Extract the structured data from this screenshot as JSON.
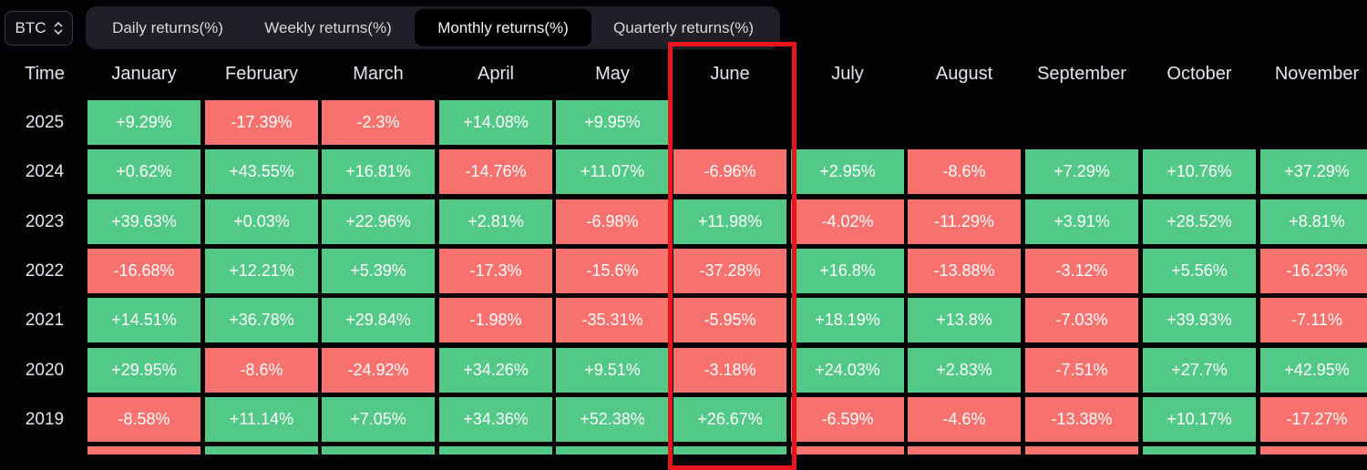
{
  "asset_selector": {
    "value": "BTC",
    "icon": "chevron-updown-icon"
  },
  "tabs": [
    {
      "label": "Daily returns(%)",
      "active": false
    },
    {
      "label": "Weekly returns(%)",
      "active": false
    },
    {
      "label": "Monthly returns(%)",
      "active": true
    },
    {
      "label": "Quarterly returns(%)",
      "active": false
    }
  ],
  "table": {
    "time_header": "Time",
    "months": [
      "January",
      "February",
      "March",
      "April",
      "May",
      "June",
      "July",
      "August",
      "September",
      "October",
      "November"
    ],
    "rows": [
      {
        "year": "2025",
        "values": [
          "+9.29%",
          "-17.39%",
          "-2.3%",
          "+14.08%",
          "+9.95%",
          "",
          "",
          "",
          "",
          "",
          ""
        ]
      },
      {
        "year": "2024",
        "values": [
          "+0.62%",
          "+43.55%",
          "+16.81%",
          "-14.76%",
          "+11.07%",
          "-6.96%",
          "+2.95%",
          "-8.6%",
          "+7.29%",
          "+10.76%",
          "+37.29%"
        ]
      },
      {
        "year": "2023",
        "values": [
          "+39.63%",
          "+0.03%",
          "+22.96%",
          "+2.81%",
          "-6.98%",
          "+11.98%",
          "-4.02%",
          "-11.29%",
          "+3.91%",
          "+28.52%",
          "+8.81%"
        ]
      },
      {
        "year": "2022",
        "values": [
          "-16.68%",
          "+12.21%",
          "+5.39%",
          "-17.3%",
          "-15.6%",
          "-37.28%",
          "+16.8%",
          "-13.88%",
          "-3.12%",
          "+5.56%",
          "-16.23%"
        ]
      },
      {
        "year": "2021",
        "values": [
          "+14.51%",
          "+36.78%",
          "+29.84%",
          "-1.98%",
          "-35.31%",
          "-5.95%",
          "+18.19%",
          "+13.8%",
          "-7.03%",
          "+39.93%",
          "-7.11%"
        ]
      },
      {
        "year": "2020",
        "values": [
          "+29.95%",
          "-8.6%",
          "-24.92%",
          "+34.26%",
          "+9.51%",
          "-3.18%",
          "+24.03%",
          "+2.83%",
          "-7.51%",
          "+27.7%",
          "+42.95%"
        ]
      },
      {
        "year": "2019",
        "values": [
          "-8.58%",
          "+11.14%",
          "+7.05%",
          "+34.36%",
          "+52.38%",
          "+26.67%",
          "-6.59%",
          "-4.6%",
          "-13.38%",
          "+10.17%",
          "-17.27%"
        ]
      }
    ],
    "partial_next_row": [
      "neg",
      "pos",
      "pos",
      "pos",
      "pos",
      "pos",
      "neg",
      "neg",
      "neg",
      "pos",
      "neg"
    ]
  },
  "colors": {
    "positive": "#53c987",
    "negative": "#f7716f",
    "highlight": "#e8161c",
    "background": "#030306"
  },
  "highlighted_month": "June"
}
